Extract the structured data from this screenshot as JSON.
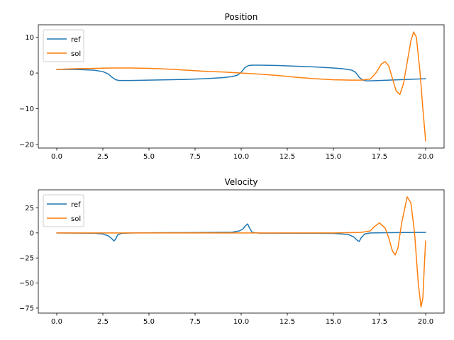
{
  "colors": {
    "ref": "#1f77b4",
    "sol": "#ff7f0e"
  },
  "chart_data": [
    {
      "type": "line",
      "title": "Position",
      "xlim": [
        -1,
        21
      ],
      "ylim": [
        -21,
        13.5
      ],
      "xticks": [
        0.0,
        2.5,
        5.0,
        7.5,
        10.0,
        12.5,
        15.0,
        17.5,
        20.0
      ],
      "xtick_labels": [
        "0.0",
        "2.5",
        "5.0",
        "7.5",
        "10.0",
        "12.5",
        "15.0",
        "17.5",
        "20.0"
      ],
      "yticks": [
        10,
        0,
        -10,
        -20
      ],
      "ytick_labels": [
        "10",
        "0",
        "−10",
        "−20"
      ],
      "legend": "upper-left",
      "grid": false,
      "series": [
        {
          "name": "ref",
          "color": "#1f77b4",
          "x": [
            0,
            0.5,
            1.0,
            1.5,
            2.0,
            2.5,
            2.8,
            3.0,
            3.2,
            3.4,
            4.0,
            5.0,
            6.0,
            7.0,
            8.0,
            9.0,
            9.5,
            9.8,
            10.0,
            10.2,
            10.4,
            10.6,
            11.0,
            12.0,
            13.0,
            14.0,
            15.0,
            15.5,
            16.0,
            16.2,
            16.4,
            16.6,
            16.8,
            17.0,
            18.0,
            19.0,
            20.0
          ],
          "y": [
            1.0,
            1.0,
            1.0,
            0.9,
            0.8,
            0.4,
            -0.3,
            -1.2,
            -1.9,
            -2.1,
            -2.1,
            -2.0,
            -1.9,
            -1.8,
            -1.6,
            -1.3,
            -1.0,
            -0.6,
            0.2,
            1.5,
            2.1,
            2.2,
            2.2,
            2.1,
            1.9,
            1.7,
            1.4,
            1.2,
            0.8,
            0.2,
            -1.2,
            -2.0,
            -2.2,
            -2.2,
            -2.0,
            -1.8,
            -1.6
          ]
        },
        {
          "name": "sol",
          "color": "#ff7f0e",
          "x": [
            0,
            1,
            2,
            3,
            4,
            5,
            6,
            7,
            8,
            9,
            10,
            11,
            12,
            13,
            14,
            15,
            16,
            16.5,
            17.0,
            17.3,
            17.6,
            17.8,
            18.0,
            18.2,
            18.4,
            18.6,
            18.8,
            19.0,
            19.2,
            19.35,
            19.5,
            19.7,
            19.85,
            20.0
          ],
          "y": [
            1.0,
            1.2,
            1.3,
            1.4,
            1.4,
            1.3,
            1.1,
            0.8,
            0.5,
            0.3,
            0.0,
            -0.3,
            -0.7,
            -1.2,
            -1.6,
            -1.9,
            -2.0,
            -2.0,
            -1.7,
            0.0,
            2.5,
            3.2,
            2.0,
            -1.5,
            -5.0,
            -6.0,
            -3.0,
            3.0,
            9.0,
            11.5,
            10.0,
            0.0,
            -10.0,
            -19.0
          ]
        }
      ]
    },
    {
      "type": "line",
      "title": "Velocity",
      "xlim": [
        -1,
        21
      ],
      "ylim": [
        -80,
        43
      ],
      "xticks": [
        0.0,
        2.5,
        5.0,
        7.5,
        10.0,
        12.5,
        15.0,
        17.5,
        20.0
      ],
      "xtick_labels": [
        "0.0",
        "2.5",
        "5.0",
        "7.5",
        "10.0",
        "12.5",
        "15.0",
        "17.5",
        "20.0"
      ],
      "yticks": [
        25,
        0,
        -25,
        -50,
        -75
      ],
      "ytick_labels": [
        "25",
        "0",
        "−25",
        "−50",
        "−75"
      ],
      "legend": "upper-left",
      "grid": false,
      "series": [
        {
          "name": "ref",
          "color": "#1f77b4",
          "x": [
            0,
            2.0,
            2.5,
            2.8,
            3.0,
            3.1,
            3.2,
            3.3,
            3.5,
            4.0,
            6.0,
            8.0,
            9.5,
            9.9,
            10.1,
            10.2,
            10.35,
            10.45,
            10.6,
            11.0,
            13.0,
            15.0,
            15.8,
            16.1,
            16.3,
            16.4,
            16.5,
            16.7,
            17.0,
            18.0,
            19.0,
            20.0
          ],
          "y": [
            0,
            -0.3,
            -1.0,
            -3.0,
            -6.0,
            -8.0,
            -6.0,
            -2.0,
            -0.5,
            0,
            0.2,
            0.4,
            0.7,
            2.0,
            4.0,
            6.5,
            9.0,
            5.0,
            0.5,
            -0.2,
            -0.3,
            -0.5,
            -1.5,
            -4.0,
            -7.5,
            -8.5,
            -5.0,
            -1.0,
            0.0,
            0.2,
            0.4,
            0.5
          ]
        },
        {
          "name": "sol",
          "color": "#ff7f0e",
          "x": [
            0,
            5,
            10,
            15,
            16.5,
            17.0,
            17.2,
            17.5,
            17.8,
            18.0,
            18.2,
            18.35,
            18.5,
            18.7,
            19.0,
            19.2,
            19.4,
            19.6,
            19.75,
            19.85,
            19.95,
            20.0
          ],
          "y": [
            0,
            0,
            0,
            0,
            0.5,
            2.0,
            6.0,
            10.0,
            5.0,
            -5.0,
            -18.0,
            -22.0,
            -15.0,
            10.0,
            36.0,
            30.0,
            0.0,
            -50.0,
            -74.0,
            -65.0,
            -25.0,
            -8.0
          ]
        }
      ]
    }
  ]
}
